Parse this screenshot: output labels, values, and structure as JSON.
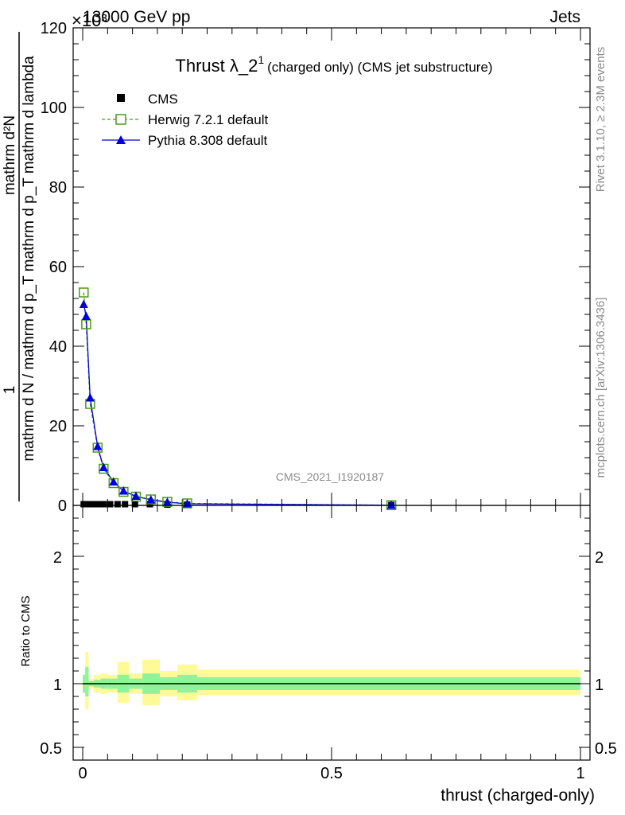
{
  "header": {
    "energy_label": "13000 GeV pp",
    "category_label": "Jets",
    "exponent_label": "×10³"
  },
  "side_labels": {
    "rivet": "Rivet 3.1.10, ≥ 2.3M events",
    "mcplots": "mcplots.cern.ch [arXiv:1306.3436]"
  },
  "watermark": "CMS_2021_I1920187",
  "chart_data": [
    {
      "type": "line",
      "title_main": "Thrust λ_2",
      "title_sup": "1",
      "title_rest": "(charged only) (CMS jet substructure)",
      "ylabel_lower": "mathrm d N / mathrm d p_T mathrm d p_T mathrm d lambda",
      "ylabel_upper": "mathrm d²N",
      "ylabel_numerator": "1",
      "xlim": [
        0,
        1
      ],
      "ylim": [
        0,
        120
      ],
      "y_ticks": [
        "0",
        "20",
        "40",
        "60",
        "80",
        "100",
        "120"
      ],
      "series": [
        {
          "name": "CMS",
          "color": "#000000",
          "marker": "square-filled",
          "x": [
            0.002,
            0.007,
            0.013,
            0.02,
            0.03,
            0.042,
            0.055,
            0.07,
            0.085,
            0.105,
            0.135,
            0.17,
            0.21,
            0.62
          ],
          "y": [
            0.3,
            0.3,
            0.3,
            0.3,
            0.3,
            0.3,
            0.3,
            0.3,
            0.3,
            0.3,
            0.3,
            0.2,
            0.2,
            0.1
          ]
        },
        {
          "name": "Herwig 7.2.1 default",
          "color": "#4a9a1a",
          "marker": "square-open",
          "dashed": true,
          "x": [
            0.002,
            0.007,
            0.015,
            0.03,
            0.042,
            0.062,
            0.082,
            0.107,
            0.137,
            0.17,
            0.21,
            0.62
          ],
          "y": [
            53.5,
            45.5,
            25.5,
            14.5,
            9.2,
            5.6,
            3.4,
            2.2,
            1.5,
            0.9,
            0.5,
            0.05
          ]
        },
        {
          "name": "Pythia 8.308 default",
          "color": "#0000dd",
          "marker": "triangle-filled",
          "x": [
            0.002,
            0.007,
            0.015,
            0.03,
            0.042,
            0.062,
            0.082,
            0.107,
            0.137,
            0.17,
            0.21,
            0.62
          ],
          "y": [
            50.5,
            47.5,
            27.0,
            14.8,
            9.5,
            5.9,
            3.6,
            2.3,
            1.4,
            0.8,
            0.4,
            0.05
          ]
        }
      ]
    },
    {
      "type": "area",
      "ylabel": "Ratio to CMS",
      "xlabel": "thrust (charged-only)",
      "xlim": [
        0,
        1
      ],
      "ylim": [
        0.4,
        2.4
      ],
      "x_ticks": [
        "0",
        "0.5",
        "1"
      ],
      "y_ticks": [
        "0.5",
        "1",
        "2"
      ],
      "band_colors": {
        "outer": "#fffa98",
        "inner": "#8ef39a"
      },
      "bins": [
        {
          "x0": 0.0,
          "x1": 0.005,
          "inner": [
            0.93,
            1.07
          ],
          "outer": [
            0.93,
            1.07
          ]
        },
        {
          "x0": 0.005,
          "x1": 0.012,
          "inner": [
            0.9,
            1.13
          ],
          "outer": [
            0.8,
            1.25
          ]
        },
        {
          "x0": 0.012,
          "x1": 0.022,
          "inner": [
            0.98,
            1.02
          ],
          "outer": [
            0.96,
            1.04
          ]
        },
        {
          "x0": 0.022,
          "x1": 0.036,
          "inner": [
            0.97,
            1.03
          ],
          "outer": [
            0.93,
            1.07
          ]
        },
        {
          "x0": 0.036,
          "x1": 0.05,
          "inner": [
            0.96,
            1.04
          ],
          "outer": [
            0.92,
            1.08
          ]
        },
        {
          "x0": 0.05,
          "x1": 0.07,
          "inner": [
            0.96,
            1.04
          ],
          "outer": [
            0.93,
            1.07
          ]
        },
        {
          "x0": 0.07,
          "x1": 0.093,
          "inner": [
            0.93,
            1.07
          ],
          "outer": [
            0.85,
            1.17
          ]
        },
        {
          "x0": 0.093,
          "x1": 0.12,
          "inner": [
            0.96,
            1.04
          ],
          "outer": [
            0.92,
            1.08
          ]
        },
        {
          "x0": 0.12,
          "x1": 0.155,
          "inner": [
            0.92,
            1.08
          ],
          "outer": [
            0.83,
            1.19
          ]
        },
        {
          "x0": 0.155,
          "x1": 0.19,
          "inner": [
            0.95,
            1.05
          ],
          "outer": [
            0.9,
            1.1
          ]
        },
        {
          "x0": 0.19,
          "x1": 0.23,
          "inner": [
            0.93,
            1.07
          ],
          "outer": [
            0.87,
            1.15
          ]
        },
        {
          "x0": 0.23,
          "x1": 1.0,
          "inner": [
            0.95,
            1.05
          ],
          "outer": [
            0.91,
            1.11
          ]
        }
      ]
    }
  ]
}
